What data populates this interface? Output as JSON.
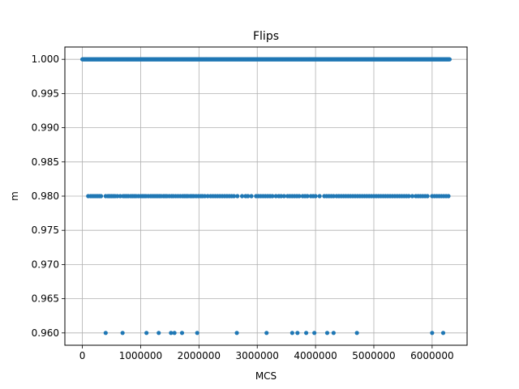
{
  "chart_data": {
    "type": "scatter",
    "title": "Flips",
    "xlabel": "MCS",
    "ylabel": "m",
    "xlim": [
      -300000,
      6600000
    ],
    "ylim": [
      0.9582,
      1.0018
    ],
    "xticks": [
      0,
      1000000,
      2000000,
      3000000,
      4000000,
      5000000,
      6000000
    ],
    "xtick_labels": [
      "0",
      "1000000",
      "2000000",
      "3000000",
      "4000000",
      "5000000",
      "6000000"
    ],
    "yticks": [
      0.96,
      0.965,
      0.97,
      0.975,
      0.98,
      0.985,
      0.99,
      0.995,
      1.0
    ],
    "ytick_labels": [
      "0.960",
      "0.965",
      "0.970",
      "0.975",
      "0.980",
      "0.985",
      "0.990",
      "0.995",
      "1.000"
    ],
    "grid": true,
    "marker_color": "#1f77b4",
    "series": [
      {
        "y": 1.0,
        "x_start": 0,
        "x_end": 6300000,
        "x_step": 10000
      },
      {
        "y": 0.98,
        "x": [
          100000,
          140000,
          170000,
          200000,
          230000,
          260000,
          290000,
          320000,
          400000,
          440000,
          470000,
          500000,
          530000,
          560000,
          600000,
          650000,
          700000,
          730000,
          760000,
          790000,
          830000,
          860000,
          890000,
          920000,
          960000,
          1000000,
          1030000,
          1060000,
          1090000,
          1130000,
          1170000,
          1200000,
          1230000,
          1260000,
          1290000,
          1320000,
          1350000,
          1390000,
          1420000,
          1450000,
          1490000,
          1530000,
          1560000,
          1600000,
          1640000,
          1680000,
          1720000,
          1750000,
          1780000,
          1810000,
          1850000,
          1880000,
          1910000,
          1950000,
          1990000,
          2030000,
          2060000,
          2100000,
          2150000,
          2200000,
          2240000,
          2280000,
          2320000,
          2360000,
          2400000,
          2440000,
          2480000,
          2520000,
          2560000,
          2600000,
          2660000,
          2740000,
          2800000,
          2840000,
          2900000,
          2980000,
          3020000,
          3060000,
          3100000,
          3140000,
          3180000,
          3220000,
          3260000,
          3320000,
          3370000,
          3410000,
          3460000,
          3520000,
          3560000,
          3600000,
          3640000,
          3680000,
          3720000,
          3780000,
          3820000,
          3860000,
          3920000,
          3960000,
          4000000,
          4070000,
          4150000,
          4190000,
          4230000,
          4270000,
          4310000,
          4360000,
          4400000,
          4440000,
          4480000,
          4520000,
          4560000,
          4600000,
          4640000,
          4680000,
          4720000,
          4760000,
          4800000,
          4840000,
          4880000,
          4920000,
          4960000,
          5000000,
          5040000,
          5080000,
          5120000,
          5160000,
          5200000,
          5240000,
          5280000,
          5320000,
          5360000,
          5400000,
          5440000,
          5480000,
          5520000,
          5560000,
          5600000,
          5660000,
          5720000,
          5760000,
          5800000,
          5840000,
          5880000,
          5920000,
          6000000,
          6040000,
          6080000,
          6120000,
          6160000,
          6200000,
          6240000,
          6280000
        ]
      },
      {
        "y": 0.96,
        "x": [
          400000,
          690000,
          1100000,
          1310000,
          1520000,
          1580000,
          1710000,
          1970000,
          2650000,
          3160000,
          3600000,
          3690000,
          3840000,
          3980000,
          4200000,
          4310000,
          4710000,
          6000000,
          6190000
        ]
      }
    ]
  }
}
